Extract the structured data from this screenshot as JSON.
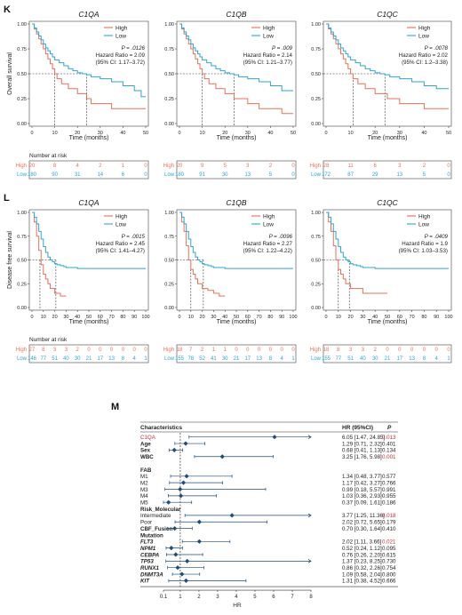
{
  "panels": {
    "K": {
      "letter": "K",
      "ylabel": "Overall survival",
      "xlabel": "Time (months)",
      "x_ticks": [
        "0",
        "10",
        "20",
        "30",
        "40",
        "50"
      ],
      "y_ticks": [
        "0.00",
        "0.25",
        "0.50",
        "0.75",
        "1.00"
      ],
      "xlim": [
        0,
        50
      ],
      "risk_title": "Number at risk",
      "risk_ticks": [
        "0",
        "10",
        "20",
        "30",
        "40",
        "50"
      ]
    },
    "L": {
      "letter": "L",
      "ylabel": "Disease free survival",
      "xlabel": "Time (months)",
      "x_ticks": [
        "0",
        "10",
        "20",
        "30",
        "40",
        "50",
        "60",
        "70",
        "80",
        "90",
        "100"
      ],
      "y_ticks": [
        "0.00",
        "0.25",
        "0.50",
        "0.75",
        "1.00"
      ],
      "xlim": [
        0,
        100
      ],
      "risk_title": "Number at risk",
      "risk_ticks": [
        "0",
        "10",
        "20",
        "30",
        "40",
        "50",
        "60",
        "70",
        "80",
        "90",
        "100"
      ]
    }
  },
  "legend": {
    "high": "High",
    "low": "Low"
  },
  "risk_labels": {
    "high": "High",
    "low": "Low"
  },
  "colors": {
    "high": "#e8705a",
    "low": "#2aa7d4",
    "forest": "#1f4e79",
    "red_text": "#d03030"
  },
  "chart_data": [
    {
      "type": "line",
      "panel": "K",
      "gene": "C1QA",
      "title": "C1QA",
      "stats": [
        "P = .0126",
        "Hazard Ratio = 2.09",
        "(95% CI: 1.17–3.72)"
      ],
      "series": [
        {
          "name": "High",
          "x": [
            0,
            1,
            2,
            3,
            4,
            5,
            6,
            7,
            8,
            9,
            10,
            11,
            13,
            16,
            20,
            24,
            26,
            35,
            40,
            50
          ],
          "y": [
            1,
            0.95,
            0.9,
            0.85,
            0.8,
            0.75,
            0.7,
            0.65,
            0.6,
            0.55,
            0.5,
            0.45,
            0.4,
            0.35,
            0.3,
            0.25,
            0.2,
            0.15,
            0.15,
            0.15
          ]
        },
        {
          "name": "Low",
          "x": [
            0,
            1,
            2,
            3,
            4,
            5,
            6,
            7,
            8,
            9,
            10,
            12,
            14,
            16,
            18,
            20,
            22,
            24,
            26,
            30,
            35,
            40,
            45,
            48,
            50
          ],
          "y": [
            1,
            0.96,
            0.92,
            0.88,
            0.84,
            0.8,
            0.76,
            0.73,
            0.7,
            0.67,
            0.64,
            0.61,
            0.58,
            0.55,
            0.53,
            0.51,
            0.5,
            0.49,
            0.47,
            0.45,
            0.42,
            0.38,
            0.33,
            0.27,
            0.27
          ]
        }
      ],
      "medians": [
        10,
        24
      ],
      "risk_table": {
        "High": [
          "20",
          "8",
          "4",
          "2",
          "1",
          "0"
        ],
        "Low": [
          "180",
          "90",
          "31",
          "14",
          "6",
          "0"
        ]
      }
    },
    {
      "type": "line",
      "panel": "K",
      "gene": "C1QB",
      "title": "C1QB",
      "stats": [
        "P = .009",
        "Hazard Ratio = 2.14",
        "(95% CI: 1.21–3.77)"
      ],
      "series": [
        {
          "name": "High",
          "x": [
            0,
            1,
            2,
            3,
            4,
            5,
            6,
            7,
            8,
            9,
            10,
            11,
            13,
            16,
            20,
            24,
            30,
            35,
            45,
            50
          ],
          "y": [
            1,
            0.95,
            0.9,
            0.85,
            0.8,
            0.75,
            0.7,
            0.65,
            0.6,
            0.55,
            0.5,
            0.45,
            0.4,
            0.35,
            0.3,
            0.25,
            0.2,
            0.15,
            0.1,
            0.1
          ]
        },
        {
          "name": "Low",
          "x": [
            0,
            1,
            2,
            3,
            4,
            5,
            6,
            7,
            8,
            9,
            10,
            12,
            14,
            16,
            18,
            20,
            22,
            24,
            26,
            30,
            35,
            40,
            45,
            50
          ],
          "y": [
            1,
            0.96,
            0.92,
            0.88,
            0.84,
            0.8,
            0.76,
            0.73,
            0.7,
            0.67,
            0.64,
            0.61,
            0.58,
            0.55,
            0.53,
            0.51,
            0.5,
            0.49,
            0.47,
            0.45,
            0.42,
            0.38,
            0.33,
            0.33
          ]
        }
      ],
      "medians": [
        10,
        24
      ],
      "risk_table": {
        "High": [
          "20",
          "9",
          "5",
          "3",
          "2",
          "0"
        ],
        "Low": [
          "180",
          "91",
          "30",
          "13",
          "5",
          "0"
        ]
      }
    },
    {
      "type": "line",
      "panel": "K",
      "gene": "C1QC",
      "title": "C1QC",
      "stats": [
        "P = .0078",
        "Hazard Ratio = 2.02",
        "(95% CI: 1.2–3.38)"
      ],
      "series": [
        {
          "name": "High",
          "x": [
            0,
            1,
            2,
            3,
            4,
            5,
            6,
            7,
            8,
            9,
            10,
            11,
            13,
            16,
            20,
            25,
            30,
            40,
            50
          ],
          "y": [
            1,
            0.95,
            0.9,
            0.85,
            0.8,
            0.75,
            0.7,
            0.65,
            0.6,
            0.55,
            0.5,
            0.45,
            0.4,
            0.35,
            0.3,
            0.25,
            0.2,
            0.15,
            0.15
          ]
        },
        {
          "name": "Low",
          "x": [
            0,
            1,
            2,
            3,
            4,
            5,
            6,
            7,
            8,
            9,
            10,
            12,
            14,
            16,
            18,
            20,
            22,
            24,
            26,
            30,
            35,
            40,
            45,
            50
          ],
          "y": [
            1,
            0.96,
            0.92,
            0.88,
            0.84,
            0.8,
            0.76,
            0.73,
            0.7,
            0.67,
            0.64,
            0.61,
            0.58,
            0.55,
            0.53,
            0.51,
            0.5,
            0.49,
            0.47,
            0.45,
            0.42,
            0.38,
            0.35,
            0.35
          ]
        }
      ],
      "medians": [
        11,
        24
      ],
      "risk_table": {
        "High": [
          "28",
          "11",
          "6",
          "3",
          "2",
          "0"
        ],
        "Low": [
          "172",
          "87",
          "29",
          "13",
          "5",
          "0"
        ]
      }
    },
    {
      "type": "line",
      "panel": "L",
      "gene": "C1QA",
      "title": "C1QA",
      "stats": [
        "P = .0015",
        "Hazard Ratio = 2.45",
        "(95% CI: 1.41–4.27)"
      ],
      "series": [
        {
          "name": "High",
          "x": [
            0,
            2,
            4,
            6,
            8,
            10,
            12,
            14,
            16,
            20,
            25,
            30
          ],
          "y": [
            1,
            0.9,
            0.75,
            0.6,
            0.45,
            0.35,
            0.3,
            0.25,
            0.2,
            0.15,
            0.12,
            0.12
          ]
        },
        {
          "name": "Low",
          "x": [
            0,
            2,
            4,
            6,
            8,
            10,
            12,
            14,
            16,
            18,
            20,
            22,
            25,
            28,
            30,
            35,
            40,
            50,
            60,
            70,
            80,
            90,
            100
          ],
          "y": [
            1,
            0.95,
            0.88,
            0.8,
            0.72,
            0.64,
            0.58,
            0.53,
            0.5,
            0.48,
            0.46,
            0.45,
            0.44,
            0.43,
            0.42,
            0.42,
            0.41,
            0.41,
            0.41,
            0.41,
            0.41,
            0.41,
            0.41
          ]
        }
      ],
      "medians": [
        7,
        21
      ],
      "risk_table": {
        "High": [
          "27",
          "8",
          "3",
          "3",
          "2",
          "0",
          "0",
          "0",
          "0",
          "0",
          "0"
        ],
        "Low": [
          "146",
          "77",
          "51",
          "40",
          "30",
          "21",
          "17",
          "13",
          "8",
          "4",
          "1"
        ]
      }
    },
    {
      "type": "line",
      "panel": "L",
      "gene": "C1QB",
      "title": "C1QB",
      "stats": [
        "P = .0096",
        "Hazard Ratio = 2.27",
        "(95% CI: 1.22–4.22)"
      ],
      "series": [
        {
          "name": "High",
          "x": [
            0,
            2,
            4,
            6,
            8,
            10,
            12,
            14,
            16,
            20,
            25,
            30,
            35,
            40
          ],
          "y": [
            1,
            0.9,
            0.8,
            0.65,
            0.5,
            0.4,
            0.35,
            0.3,
            0.25,
            0.2,
            0.18,
            0.15,
            0.12,
            0.12
          ]
        },
        {
          "name": "Low",
          "x": [
            0,
            2,
            4,
            6,
            8,
            10,
            12,
            14,
            16,
            18,
            20,
            22,
            25,
            28,
            30,
            35,
            40,
            50,
            60,
            70,
            80,
            90,
            100
          ],
          "y": [
            1,
            0.95,
            0.88,
            0.8,
            0.72,
            0.64,
            0.58,
            0.53,
            0.5,
            0.48,
            0.46,
            0.45,
            0.44,
            0.43,
            0.42,
            0.42,
            0.41,
            0.41,
            0.41,
            0.41,
            0.41,
            0.41,
            0.41
          ]
        }
      ],
      "medians": [
        10,
        21
      ],
      "risk_table": {
        "High": [
          "18",
          "7",
          "2",
          "1",
          "1",
          "0",
          "0",
          "0",
          "0",
          "0",
          "0"
        ],
        "Low": [
          "155",
          "78",
          "52",
          "41",
          "30",
          "21",
          "17",
          "13",
          "8",
          "4",
          "1"
        ]
      }
    },
    {
      "type": "line",
      "panel": "L",
      "gene": "C1QC",
      "title": "C1QC",
      "stats": [
        "P = .0409",
        "Hazard Ratio = 1.9",
        "(95% CI: 1.03–3.53)"
      ],
      "series": [
        {
          "name": "High",
          "x": [
            0,
            2,
            4,
            6,
            8,
            10,
            12,
            14,
            16,
            20,
            25,
            30,
            40,
            50
          ],
          "y": [
            1,
            0.9,
            0.8,
            0.65,
            0.5,
            0.4,
            0.35,
            0.3,
            0.25,
            0.2,
            0.2,
            0.15,
            0.15,
            0.15
          ]
        },
        {
          "name": "Low",
          "x": [
            0,
            2,
            4,
            6,
            8,
            10,
            12,
            14,
            16,
            18,
            20,
            22,
            25,
            28,
            30,
            35,
            40,
            50,
            60,
            70,
            80,
            90,
            100
          ],
          "y": [
            1,
            0.95,
            0.88,
            0.8,
            0.72,
            0.64,
            0.58,
            0.53,
            0.5,
            0.48,
            0.46,
            0.45,
            0.44,
            0.43,
            0.42,
            0.42,
            0.41,
            0.41,
            0.41,
            0.41,
            0.41,
            0.41,
            0.41
          ]
        }
      ],
      "medians": [
        10,
        19
      ],
      "risk_table": {
        "High": [
          "18",
          "8",
          "3",
          "3",
          "2",
          "0",
          "0",
          "0",
          "0",
          "0",
          "0"
        ],
        "Low": [
          "155",
          "77",
          "51",
          "40",
          "30",
          "21",
          "17",
          "13",
          "8",
          "4",
          "1"
        ]
      }
    },
    {
      "type": "forest",
      "panel": "M",
      "letter": "M",
      "headers": {
        "characteristics": "Characteristics",
        "hr": "HR (95%CI)",
        "p": "P"
      },
      "xlabel": "HR",
      "x_ticks": [
        "0.1",
        "1",
        "2",
        "3",
        "4",
        "5",
        "6",
        "7",
        "8"
      ],
      "x_tick_values": [
        0.1,
        1,
        2,
        3,
        4,
        5,
        6,
        7,
        8
      ],
      "xlim": [
        0.1,
        8
      ],
      "reference_line": 1,
      "rows": [
        {
          "label": "C1QA",
          "style": "red",
          "hr": 6.05,
          "lo": 1.47,
          "hi": 24.85,
          "text": "6.05 [1.47, 24.85]",
          "p": "0.013",
          "p_red": true
        },
        {
          "label": "Age",
          "style": "bold",
          "hr": 1.29,
          "lo": 0.71,
          "hi": 2.32,
          "text": "1.29 [0.71, 2.32]",
          "p": "0.401"
        },
        {
          "label": "Sex",
          "style": "bold",
          "hr": 0.68,
          "lo": 0.41,
          "hi": 1.13,
          "text": "0.68 [0.41, 1.13]",
          "p": "0.134"
        },
        {
          "label": "WBC",
          "style": "bold",
          "hr": 3.25,
          "lo": 1.76,
          "hi": 5.98,
          "text": "3.25 [1.76, 5.98]",
          "p": "0.001",
          "p_red": true
        },
        {
          "label": "",
          "style": "blank"
        },
        {
          "label": "FAB",
          "style": "bold"
        },
        {
          "label": "M1",
          "style": "plain",
          "hr": 1.34,
          "lo": 0.48,
          "hi": 3.77,
          "text": "1.34 [0.48, 3.77]",
          "p": "0.577"
        },
        {
          "label": "M2",
          "style": "plain",
          "hr": 1.17,
          "lo": 0.42,
          "hi": 3.27,
          "text": "1.17 [0.42, 3.27]",
          "p": "0.766"
        },
        {
          "label": "M3",
          "style": "plain",
          "hr": 0.99,
          "lo": 0.18,
          "hi": 5.57,
          "text": "0.99 [0.18, 5.57]",
          "p": "0.991"
        },
        {
          "label": "M4",
          "style": "plain",
          "hr": 1.03,
          "lo": 0.36,
          "hi": 2.93,
          "text": "1.03 [0.36, 2.93]",
          "p": "0.955"
        },
        {
          "label": "M5",
          "style": "plain",
          "hr": 0.37,
          "lo": 0.09,
          "hi": 1.61,
          "text": "0.37 [0.09, 1.61]",
          "p": "0.186"
        },
        {
          "label": "Risk_Molecular",
          "style": "bold"
        },
        {
          "label": "Intermediate",
          "style": "plain",
          "hr": 3.77,
          "lo": 1.25,
          "hi": 11.36,
          "text": "3.77 [1.25, 11.36]",
          "p": "0.018",
          "p_red": true
        },
        {
          "label": "Poor",
          "style": "plain",
          "hr": 2.02,
          "lo": 0.72,
          "hi": 5.65,
          "text": "2.02 [0.72, 5.65]",
          "p": "0.179"
        },
        {
          "label": "CBF_Fusion",
          "style": "bold",
          "hr": 0.7,
          "lo": 0.3,
          "hi": 1.64,
          "text": "0.70 [0.30, 1.64]",
          "p": "0.410"
        },
        {
          "label": "Mutation",
          "style": "bold"
        },
        {
          "label": "FLT3",
          "style": "bolditalic",
          "hr": 2.02,
          "lo": 1.11,
          "hi": 3.66,
          "text": "2.02 [1.11, 3.66]",
          "p": "0.021",
          "p_red": true
        },
        {
          "label": "NPM1",
          "style": "bolditalic",
          "hr": 0.52,
          "lo": 0.24,
          "hi": 1.12,
          "text": "0.52 [0.24, 1.12]",
          "p": "0.095"
        },
        {
          "label": "CEBPA",
          "style": "bolditalic",
          "hr": 0.76,
          "lo": 0.26,
          "hi": 2.2,
          "text": "0.76 [0.26, 2.20]",
          "p": "0.615"
        },
        {
          "label": "TP53",
          "style": "bolditalic",
          "hr": 1.37,
          "lo": 0.23,
          "hi": 8.25,
          "text": "1.37 [0.23, 8.25]",
          "p": "0.730"
        },
        {
          "label": "RUNX1",
          "style": "bolditalic",
          "hr": 0.86,
          "lo": 0.32,
          "hi": 2.26,
          "text": "0.86 [0.32, 2.26]",
          "p": "0.754"
        },
        {
          "label": "DNMT3A",
          "style": "bolditalic",
          "hr": 1.09,
          "lo": 0.58,
          "hi": 2.04,
          "text": "1.09 [0.58, 2.04]",
          "p": "0.800"
        },
        {
          "label": "KIT",
          "style": "bolditalic",
          "hr": 1.31,
          "lo": 0.38,
          "hi": 4.52,
          "text": "1.31 [0.38, 4.52]",
          "p": "0.666"
        }
      ]
    }
  ]
}
